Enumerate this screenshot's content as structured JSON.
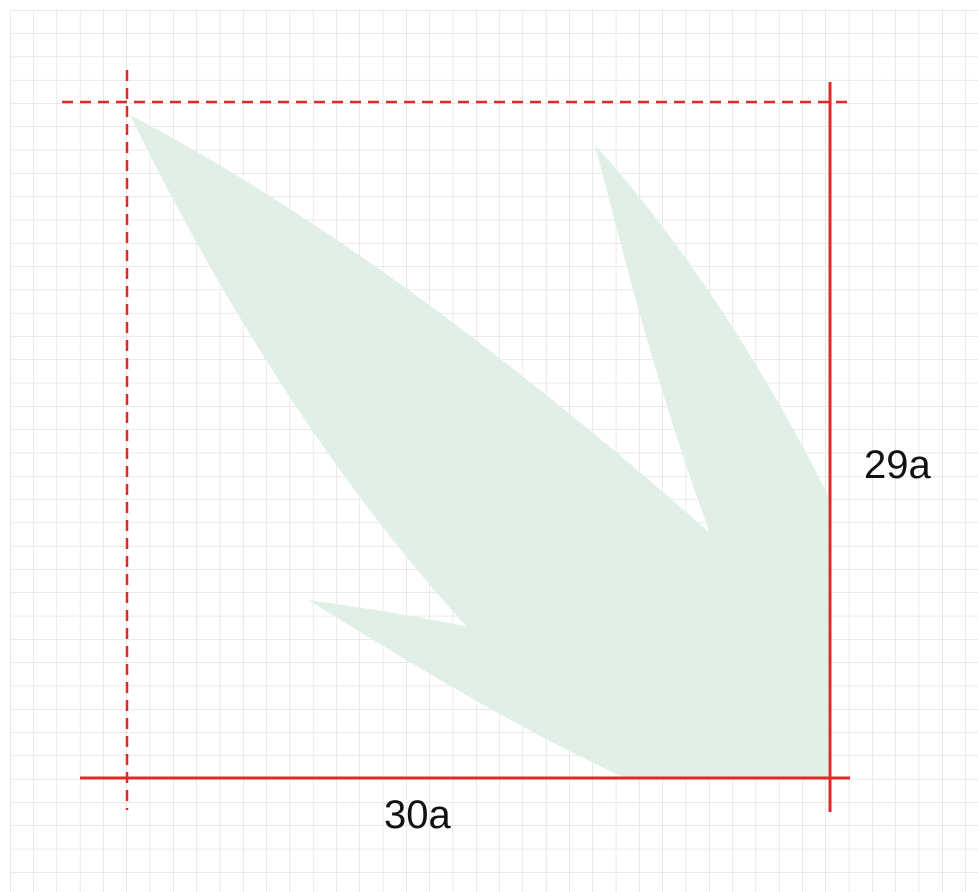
{
  "dimensions": {
    "width_label": "30a",
    "height_label": "29a"
  },
  "colors": {
    "grid": "#d6d6d6",
    "leaf_fill": "#e0f0e6",
    "guide_red": "#e02a2a",
    "background": "#ffffff"
  },
  "icons": {
    "leaf": "leaf-logo-icon"
  }
}
